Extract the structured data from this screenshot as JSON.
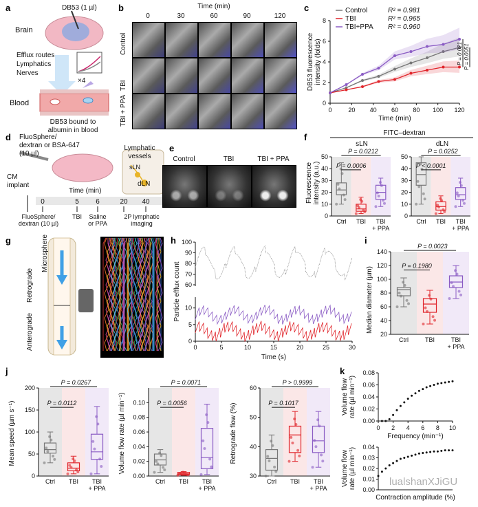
{
  "panels": {
    "a": {
      "label": "a",
      "dye": "DB53 (1 µl)",
      "brain": "Brain",
      "routes": "Efflux routes\nLymphatics\nNerves",
      "x4": "×4",
      "blood": "Blood",
      "bound": "DB53 bound to\nalbumin in blood"
    },
    "b": {
      "label": "b",
      "time_title": "Time (min)",
      "times": [
        "0",
        "30",
        "60",
        "90",
        "120"
      ],
      "rows": [
        "Control",
        "TBI",
        "TBI + PPA"
      ]
    },
    "c": {
      "label": "c",
      "legend": [
        {
          "name": "Control",
          "r2": "R² = 0.981",
          "color": "#777777"
        },
        {
          "name": "TBI",
          "r2": "R² = 0.965",
          "color": "#e0242a"
        },
        {
          "name": "TBI+PPA",
          "r2": "R² = 0.960",
          "color": "#8a5bc4"
        }
      ],
      "p1": "P = 0.021",
      "p2": "P = 0.0051"
    },
    "d": {
      "label": "d",
      "dye": "FluoSphere/\ndextran or BSA-647\n(10 µl)",
      "lymph": "Lymphatic\nvessels",
      "sln": "sLN",
      "dln": "dLN",
      "cm": "CM\nimplant",
      "time_title": "Time (min)",
      "ticks": [
        "0",
        "5",
        "6",
        "20",
        "40"
      ],
      "events": [
        "FluoSphere/\ndextran (10 µl)",
        "TBI",
        "Saline\nor PPA",
        "2P lymphatic\nimaging"
      ]
    },
    "e": {
      "label": "e",
      "cols": [
        "Control",
        "TBI",
        "TBI + PPA"
      ]
    },
    "f": {
      "label": "f",
      "title": "FITC–dextran",
      "sub": [
        "sLN",
        "dLN"
      ],
      "ylabel": "Fluorescence\nintensity (a.u.)",
      "xcats": [
        "Ctrl",
        "TBI",
        "TBI\n+ PPA"
      ],
      "p_sln": [
        "P = 0.0006",
        "P = 0.0212"
      ],
      "p_dln": [
        "P < 0.0001",
        "P = 0.0252"
      ]
    },
    "g": {
      "label": "g",
      "microsphere": "Microsphere",
      "retro": "Retrograde",
      "antero": "Anterograde",
      "pm": "2PM"
    },
    "h": {
      "label": "h",
      "ylabel": "Particle efflux count",
      "xlabel": "Time (s)"
    },
    "i": {
      "label": "i",
      "ylabel": "Median diameter (µm)",
      "xcats": [
        "Ctrl",
        "TBI",
        "TBI\n+ PPA"
      ],
      "p": [
        "P = 0.0023",
        "P = 0.1980"
      ]
    },
    "j": {
      "label": "j",
      "xcats": [
        "Ctrl",
        "TBI",
        "TBI\n+ PPA"
      ],
      "plots": [
        {
          "ylabel": "Mean speed (µm s⁻¹)",
          "p": [
            "P = 0.0267",
            "P = 0.0112"
          ]
        },
        {
          "ylabel": "Volume flow rate (µl min⁻¹)",
          "p": [
            "P = 0.0071",
            "P = 0.0056"
          ]
        },
        {
          "ylabel": "Retrograde flow (%)",
          "p": [
            "P > 0.9999",
            "P = 0.1017"
          ]
        }
      ]
    },
    "k": {
      "label": "k",
      "ylabel1": "Volume flow\nrate (µl min⁻¹)",
      "xlabel1": "Frequency (min⁻¹)",
      "ylabel2": "Volume flow\nrate (µl min⁻¹)",
      "xlabel2": "Contraction amplitude (%)"
    },
    "watermark": "lualshanXJiGU"
  },
  "chart_data": [
    {
      "panel": "c",
      "type": "line",
      "xlabel": "Time (min)",
      "ylabel": "DB53 fluorescence intensity (folds)",
      "x": [
        0,
        15,
        30,
        45,
        60,
        75,
        90,
        105,
        120
      ],
      "xlim": [
        0,
        120
      ],
      "ylim": [
        0,
        8
      ],
      "xticks": [
        0,
        20,
        40,
        60,
        80,
        100,
        120
      ],
      "yticks": [
        0,
        2,
        4,
        6,
        8
      ],
      "series": [
        {
          "name": "Control",
          "values": [
            1.0,
            1.5,
            2.2,
            2.6,
            3.3,
            3.9,
            4.4,
            5.0,
            5.4
          ]
        },
        {
          "name": "TBI",
          "values": [
            1.0,
            1.3,
            1.6,
            2.1,
            2.3,
            2.9,
            3.2,
            3.5,
            3.5
          ]
        },
        {
          "name": "TBI+PPA",
          "values": [
            1.0,
            1.8,
            2.8,
            3.4,
            4.6,
            5.0,
            5.5,
            5.7,
            6.2
          ]
        }
      ]
    },
    {
      "panel": "f-sLN",
      "type": "box",
      "categories": [
        "Ctrl",
        "TBI",
        "TBI + PPA"
      ],
      "ylim": [
        0,
        50
      ],
      "yticks": [
        0,
        10,
        20,
        30,
        40,
        50
      ],
      "box": [
        [
          10,
          18,
          22,
          28,
          45
        ],
        [
          2,
          4,
          6,
          10,
          16
        ],
        [
          8,
          14,
          20,
          26,
          32
        ]
      ]
    },
    {
      "panel": "f-dLN",
      "type": "box",
      "categories": [
        "Ctrl",
        "TBI",
        "TBI + PPA"
      ],
      "ylim": [
        0,
        50
      ],
      "yticks": [
        0,
        10,
        20,
        30,
        40,
        50
      ],
      "box": [
        [
          10,
          26,
          35,
          45,
          50
        ],
        [
          2,
          5,
          8,
          12,
          17
        ],
        [
          8,
          14,
          18,
          24,
          32
        ]
      ]
    },
    {
      "panel": "h",
      "type": "line",
      "xlabel": "Time (s)",
      "ylabel": "Particle efflux count",
      "xlim": [
        0,
        30
      ],
      "xticks": [
        0,
        5,
        10,
        15,
        20,
        25,
        30
      ],
      "yticks_top": [
        60,
        70,
        80,
        90,
        100
      ],
      "yticks_bottom": [
        0,
        5,
        10
      ]
    },
    {
      "panel": "i",
      "type": "box",
      "categories": [
        "Ctrl",
        "TBI",
        "TBI + PPA"
      ],
      "ylim": [
        20,
        140
      ],
      "yticks": [
        20,
        40,
        60,
        80,
        100,
        120,
        140
      ],
      "box": [
        [
          60,
          76,
          85,
          88,
          102
        ],
        [
          35,
          52,
          64,
          72,
          84
        ],
        [
          72,
          88,
          96,
          105,
          120
        ]
      ]
    },
    {
      "panel": "j-speed",
      "type": "box",
      "categories": [
        "Ctrl",
        "TBI",
        "TBI + PPA"
      ],
      "ylim": [
        0,
        200
      ],
      "yticks": [
        0,
        50,
        100,
        150,
        200
      ],
      "box": [
        [
          30,
          52,
          60,
          75,
          100
        ],
        [
          5,
          12,
          18,
          30,
          45
        ],
        [
          5,
          38,
          55,
          95,
          158
        ]
      ]
    },
    {
      "panel": "j-flow",
      "type": "box",
      "categories": [
        "Ctrl",
        "TBI",
        "TBI + PPA"
      ],
      "ylim": [
        0,
        0.12
      ],
      "yticks": [
        0,
        0.02,
        0.04,
        0.06,
        0.08,
        0.1
      ],
      "box": [
        [
          0.005,
          0.015,
          0.022,
          0.03,
          0.036
        ],
        [
          0.001,
          0.002,
          0.003,
          0.005,
          0.006
        ],
        [
          0.002,
          0.01,
          0.025,
          0.065,
          0.098
        ]
      ]
    },
    {
      "panel": "j-retro",
      "type": "box",
      "categories": [
        "Ctrl",
        "TBI",
        "TBI + PPA"
      ],
      "ylim": [
        30,
        60
      ],
      "yticks": [
        30,
        40,
        50,
        60
      ],
      "box": [
        [
          30,
          32,
          36,
          39,
          44
        ],
        [
          35,
          38,
          44,
          47,
          52
        ],
        [
          33,
          38,
          42,
          47,
          52
        ]
      ]
    },
    {
      "panel": "k-top",
      "type": "scatter",
      "xlabel": "Frequency (min⁻¹)",
      "xlim": [
        0,
        10
      ],
      "ylim": [
        0,
        0.08
      ],
      "xticks": [
        0,
        2,
        4,
        6,
        8,
        10
      ],
      "yticks": [
        0,
        0.02,
        0.04,
        0.06,
        0.08
      ],
      "x": [
        0.5,
        1,
        1.5,
        2,
        2.5,
        3,
        3.5,
        4,
        4.5,
        5,
        5.5,
        6,
        6.5,
        7,
        7.5,
        8,
        8.5,
        9,
        9.5,
        10
      ],
      "y": [
        0.0,
        0.0,
        0.003,
        0.01,
        0.018,
        0.025,
        0.031,
        0.037,
        0.042,
        0.046,
        0.05,
        0.053,
        0.056,
        0.058,
        0.06,
        0.062,
        0.063,
        0.064,
        0.065,
        0.066
      ]
    },
    {
      "panel": "k-bottom",
      "type": "scatter",
      "xlabel": "Contraction amplitude (%)",
      "ylim": [
        0,
        0.04
      ],
      "yticks": [
        0,
        0.01,
        0.02,
        0.03,
        0.04
      ],
      "x": [
        0,
        1,
        2,
        3,
        4,
        5,
        6,
        7,
        8,
        9,
        10,
        11,
        12,
        13,
        14,
        15,
        16,
        17,
        18,
        19,
        20
      ],
      "y": [
        0.013,
        0.017,
        0.02,
        0.023,
        0.025,
        0.027,
        0.029,
        0.03,
        0.031,
        0.032,
        0.033,
        0.034,
        0.0345,
        0.035,
        0.0355,
        0.036,
        0.036,
        0.0365,
        0.037,
        0.037,
        0.037
      ]
    }
  ]
}
